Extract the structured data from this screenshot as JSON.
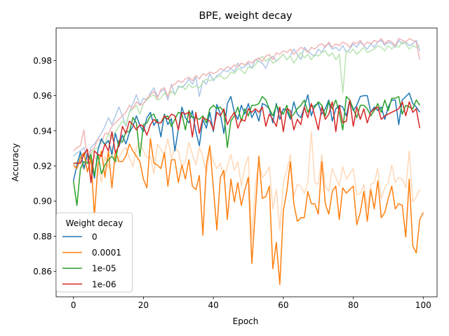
{
  "chart_data": {
    "type": "line",
    "title": "BPE, weight decay",
    "xlabel": "Epoch",
    "ylabel": "Accuracy",
    "xlim": [
      -4.95,
      103.95
    ],
    "ylim": [
      0.8455,
      0.9985
    ],
    "xticks": [
      0,
      20,
      40,
      60,
      80,
      100
    ],
    "yticks": [
      0.86,
      0.88,
      0.9,
      0.92,
      0.94,
      0.96,
      0.98
    ],
    "xtick_labels": [
      "0",
      "20",
      "40",
      "60",
      "80",
      "100"
    ],
    "ytick_labels": [
      "0.86",
      "0.88",
      "0.90",
      "0.92",
      "0.94",
      "0.96",
      "0.98"
    ],
    "legend": {
      "title": "Weight decay",
      "location": "lower left"
    },
    "grid": false,
    "series": [
      {
        "name": "0",
        "color": "#1f77b4",
        "values": [
          0.9115,
          0.9205,
          0.928,
          0.9185,
          0.927,
          0.923,
          0.913,
          0.929,
          0.9355,
          0.932,
          0.9345,
          0.9265,
          0.9385,
          0.931,
          0.9375,
          0.9325,
          0.939,
          0.9425,
          0.9485,
          0.943,
          0.9395,
          0.9475,
          0.9505,
          0.943,
          0.9465,
          0.9365,
          0.9495,
          0.9435,
          0.947,
          0.9285,
          0.941,
          0.9535,
          0.9475,
          0.9445,
          0.9515,
          0.9395,
          0.9315,
          0.9465,
          0.9415,
          0.9505,
          0.9395,
          0.955,
          0.9495,
          0.9385,
          0.9555,
          0.9595,
          0.9505,
          0.9465,
          0.9545,
          0.9495,
          0.9555,
          0.9475,
          0.9515,
          0.9455,
          0.9555,
          0.9545,
          0.9525,
          0.9445,
          0.9555,
          0.9465,
          0.9525,
          0.9515,
          0.9465,
          0.9565,
          0.9495,
          0.9475,
          0.9535,
          0.9605,
          0.9485,
          0.9545,
          0.9555,
          0.9495,
          0.9525,
          0.9575,
          0.9455,
          0.9525,
          0.9545,
          0.9535,
          0.9485,
          0.9575,
          0.9515,
          0.9545,
          0.9595,
          0.96,
          0.96,
          0.9505,
          0.9535,
          0.9515,
          0.9535,
          0.9465,
          0.9535,
          0.9575,
          0.9575,
          0.9435,
          0.9575,
          0.9595,
          0.9615,
          0.9555,
          0.9535,
          0.9505
        ]
      },
      {
        "name": "0.0001",
        "color": "#ff7f0e",
        "values": [
          0.9205,
          0.9185,
          0.9245,
          0.9275,
          0.9165,
          0.9245,
          0.8915,
          0.9205,
          0.9285,
          0.9135,
          0.9285,
          0.9075,
          0.9285,
          0.9225,
          0.9225,
          0.9255,
          0.9325,
          0.9285,
          0.9255,
          0.9225,
          0.9125,
          0.9075,
          0.9355,
          0.9215,
          0.9205,
          0.9185,
          0.9275,
          0.9085,
          0.9235,
          0.9235,
          0.9105,
          0.9205,
          0.9125,
          0.9235,
          0.9085,
          0.9065,
          0.9145,
          0.8805,
          0.9205,
          0.9315,
          0.9075,
          0.8835,
          0.9135,
          0.9175,
          0.8895,
          0.9125,
          0.8995,
          0.9105,
          0.8975,
          0.9065,
          0.9135,
          0.8645,
          0.8945,
          0.9255,
          0.9015,
          0.9025,
          0.9085,
          0.8615,
          0.8765,
          0.8525,
          0.8945,
          0.9055,
          0.9225,
          0.8985,
          0.8885,
          0.8905,
          0.8905,
          0.9055,
          0.8985,
          0.8985,
          0.8925,
          0.9225,
          0.8985,
          0.8925,
          0.9055,
          0.9085,
          0.8895,
          0.9075,
          0.9045,
          0.9065,
          0.9085,
          0.8865,
          0.8935,
          0.9055,
          0.8885,
          0.9065,
          0.8955,
          0.9115,
          0.8905,
          0.8935,
          0.9015,
          0.9085,
          0.8955,
          0.8985,
          0.8975,
          0.8795,
          0.9125,
          0.8745,
          0.8705,
          0.8895,
          0.8935
        ]
      },
      {
        "name": "1e-05",
        "color": "#2ca02c",
        "values": [
          0.9115,
          0.8975,
          0.9185,
          0.9225,
          0.9215,
          0.9265,
          0.9145,
          0.9265,
          0.9155,
          0.9205,
          0.9235,
          0.9255,
          0.9225,
          0.9345,
          0.9335,
          0.9395,
          0.9395,
          0.9475,
          0.9445,
          0.9255,
          0.9435,
          0.9445,
          0.9485,
          0.9495,
          0.9445,
          0.9445,
          0.9475,
          0.9485,
          0.9425,
          0.9465,
          0.9505,
          0.9495,
          0.9405,
          0.9515,
          0.9475,
          0.9475,
          0.9465,
          0.9485,
          0.9445,
          0.9525,
          0.9545,
          0.9525,
          0.9535,
          0.9505,
          0.9305,
          0.9455,
          0.9485,
          0.9535,
          0.9455,
          0.9525,
          0.9485,
          0.9545,
          0.9545,
          0.9555,
          0.9595,
          0.9575,
          0.9525,
          0.9485,
          0.9545,
          0.9515,
          0.9495,
          0.9545,
          0.9475,
          0.9495,
          0.9525,
          0.9545,
          0.9575,
          0.9505,
          0.9545,
          0.9535,
          0.9565,
          0.9545,
          0.9485,
          0.9565,
          0.9525,
          0.9575,
          0.9505,
          0.9405,
          0.9595,
          0.9575,
          0.9525,
          0.9475,
          0.9545,
          0.9545,
          0.9525,
          0.9485,
          0.9515,
          0.9555,
          0.9505,
          0.9575,
          0.9515,
          0.9585,
          0.9585,
          0.9595,
          0.9495,
          0.9545,
          0.9535,
          0.9525,
          0.9575,
          0.9545
        ]
      },
      {
        "name": "1e-06",
        "color": "#d62728",
        "values": [
          0.9215,
          0.9215,
          0.9215,
          0.9265,
          0.9295,
          0.9105,
          0.9285,
          0.9265,
          0.9255,
          0.9325,
          0.9285,
          0.9395,
          0.9275,
          0.9315,
          0.9425,
          0.9385,
          0.9455,
          0.9435,
          0.9405,
          0.9435,
          0.9425,
          0.9375,
          0.9435,
          0.9465,
          0.9445,
          0.9445,
          0.9485,
          0.9465,
          0.9495,
          0.9485,
          0.9405,
          0.9505,
          0.9495,
          0.9505,
          0.9365,
          0.9505,
          0.9385,
          0.9475,
          0.9465,
          0.9455,
          0.9405,
          0.9505,
          0.9485,
          0.9525,
          0.9435,
          0.9475,
          0.9505,
          0.9415,
          0.9465,
          0.9455,
          0.9525,
          0.9505,
          0.9525,
          0.9505,
          0.9535,
          0.9425,
          0.9495,
          0.9465,
          0.9425,
          0.9535,
          0.9395,
          0.9525,
          0.9515,
          0.9405,
          0.9465,
          0.9435,
          0.9535,
          0.9475,
          0.9555,
          0.9485,
          0.9405,
          0.9535,
          0.9465,
          0.9495,
          0.9565,
          0.9395,
          0.9545,
          0.9445,
          0.9455,
          0.9575,
          0.9425,
          0.9535,
          0.9465,
          0.9525,
          0.9445,
          0.9505,
          0.9525,
          0.9535,
          0.9465,
          0.9485,
          0.9495,
          0.9505,
          0.9515,
          0.9525,
          0.9565,
          0.9485,
          0.9565,
          0.9505,
          0.9525,
          0.9415
        ]
      },
      {
        "name": "",
        "color": "#aec7e8",
        "faded": true,
        "values": [
          0.9255,
          0.9275,
          0.9285,
          0.9305,
          0.9225,
          0.9305,
          0.9325,
          0.9355,
          0.9385,
          0.9425,
          0.9475,
          0.9435,
          0.9485,
          0.9535,
          0.9485,
          0.9425,
          0.9505,
          0.9555,
          0.9605,
          0.9545,
          0.9585,
          0.9575,
          0.9615,
          0.9645,
          0.9595,
          0.9625,
          0.9635,
          0.9575,
          0.9665,
          0.9605,
          0.9655,
          0.9645,
          0.9665,
          0.9695,
          0.9665,
          0.9705,
          0.9595,
          0.9685,
          0.9665,
          0.9725,
          0.9685,
          0.9715,
          0.9725,
          0.9745,
          0.9735,
          0.9755,
          0.9735,
          0.9785,
          0.9755,
          0.9765,
          0.9785,
          0.9755,
          0.9805,
          0.9795,
          0.9785,
          0.9755,
          0.9805,
          0.9825,
          0.9795,
          0.9815,
          0.9835,
          0.9805,
          0.9825,
          0.9865,
          0.9835,
          0.9805,
          0.9875,
          0.9855,
          0.9835,
          0.9825,
          0.9865,
          0.9845,
          0.9885,
          0.9895,
          0.9865,
          0.9875,
          0.9855,
          0.9885,
          0.9845,
          0.9865,
          0.9895,
          0.9875,
          0.9905,
          0.9885,
          0.9865,
          0.9895,
          0.9875,
          0.9905,
          0.9915,
          0.9885,
          0.9905,
          0.9895,
          0.9875,
          0.9915,
          0.9895,
          0.9905,
          0.9885,
          0.9895,
          0.9915,
          0.9855
        ]
      },
      {
        "name": "",
        "color": "#ffd8b8",
        "faded": true,
        "values": [
          0.9185,
          0.9205,
          0.9225,
          0.9175,
          0.9245,
          0.9135,
          0.9265,
          0.9195,
          0.9105,
          0.9255,
          0.9185,
          0.9305,
          0.9215,
          0.9245,
          0.9285,
          0.9305,
          0.9245,
          0.9195,
          0.9305,
          0.9335,
          0.9285,
          0.9245,
          0.9255,
          0.9155,
          0.9325,
          0.9295,
          0.9265,
          0.9355,
          0.9245,
          0.9305,
          0.9285,
          0.9195,
          0.9225,
          0.9335,
          0.9265,
          0.9205,
          0.9305,
          0.9255,
          0.9155,
          0.9285,
          0.9225,
          0.9185,
          0.9215,
          0.9125,
          0.9195,
          0.9265,
          0.9175,
          0.9225,
          0.9085,
          0.9195,
          0.9255,
          0.8785,
          0.9085,
          0.9225,
          0.9135,
          0.9155,
          0.9195,
          0.8955,
          0.9065,
          0.8835,
          0.9105,
          0.9175,
          0.9265,
          0.9025,
          0.9095,
          0.9085,
          0.9045,
          0.9105,
          0.9395,
          0.9105,
          0.9095,
          0.9265,
          0.9085,
          0.9055,
          0.9185,
          0.9135,
          0.9085,
          0.9195,
          0.9125,
          0.9155,
          0.9185,
          0.9035,
          0.9045,
          0.9095,
          0.8955,
          0.9095,
          0.9105,
          0.9185,
          0.9015,
          0.9075,
          0.9105,
          0.9205,
          0.9105,
          0.9135,
          0.9125,
          0.9075,
          0.9285,
          0.8995,
          0.9025,
          0.9065
        ]
      },
      {
        "name": "",
        "color": "#b9e3b1",
        "faded": true,
        "values": [
          0.9205,
          0.9225,
          0.9255,
          0.9275,
          0.9245,
          0.9265,
          0.9295,
          0.9305,
          0.9335,
          0.9325,
          0.9385,
          0.9355,
          0.9395,
          0.9425,
          0.9455,
          0.9435,
          0.9505,
          0.9525,
          0.9545,
          0.9495,
          0.9555,
          0.9575,
          0.9595,
          0.9605,
          0.9575,
          0.9585,
          0.9615,
          0.9595,
          0.9625,
          0.9605,
          0.9645,
          0.9655,
          0.9635,
          0.9665,
          0.9645,
          0.9655,
          0.9645,
          0.9675,
          0.9695,
          0.9685,
          0.9695,
          0.9705,
          0.9715,
          0.9695,
          0.9705,
          0.9735,
          0.9725,
          0.9755,
          0.9745,
          0.9725,
          0.9765,
          0.9755,
          0.9775,
          0.9805,
          0.9825,
          0.9795,
          0.9815,
          0.9785,
          0.9795,
          0.9815,
          0.9835,
          0.9805,
          0.9825,
          0.9785,
          0.9815,
          0.9845,
          0.9815,
          0.9835,
          0.9805,
          0.9835,
          0.9825,
          0.9845,
          0.9855,
          0.9825,
          0.9845,
          0.9805,
          0.9835,
          0.9615,
          0.9855,
          0.9845,
          0.9865,
          0.9835,
          0.9855,
          0.9875,
          0.9845,
          0.9855,
          0.9865,
          0.9885,
          0.9875,
          0.9855,
          0.9885,
          0.9865,
          0.9885,
          0.9875,
          0.9905,
          0.9895,
          0.9865,
          0.9885,
          0.9875,
          0.9885
        ]
      },
      {
        "name": "",
        "color": "#f2b5b5",
        "faded": true,
        "values": [
          0.9285,
          0.9305,
          0.9315,
          0.9405,
          0.9225,
          0.9285,
          0.9305,
          0.9355,
          0.9335,
          0.9385,
          0.9385,
          0.9425,
          0.9445,
          0.9465,
          0.9485,
          0.9505,
          0.9545,
          0.9525,
          0.9565,
          0.9545,
          0.9555,
          0.9585,
          0.9605,
          0.9625,
          0.9585,
          0.9635,
          0.9645,
          0.9595,
          0.9655,
          0.9665,
          0.9685,
          0.9675,
          0.9695,
          0.9705,
          0.9685,
          0.9715,
          0.9695,
          0.9725,
          0.9715,
          0.9735,
          0.9725,
          0.9735,
          0.9755,
          0.9745,
          0.9765,
          0.9755,
          0.9775,
          0.9765,
          0.9785,
          0.9775,
          0.9795,
          0.9785,
          0.9805,
          0.9815,
          0.9795,
          0.9825,
          0.9835,
          0.9805,
          0.9845,
          0.9835,
          0.9855,
          0.9845,
          0.9865,
          0.9835,
          0.9855,
          0.9875,
          0.9865,
          0.9845,
          0.9875,
          0.9865,
          0.9885,
          0.9895,
          0.9875,
          0.9905,
          0.9875,
          0.9895,
          0.9885,
          0.9905,
          0.9895,
          0.9875,
          0.9905,
          0.9895,
          0.9915,
          0.9885,
          0.9905,
          0.9895,
          0.9915,
          0.9905,
          0.9925,
          0.9895,
          0.9915,
          0.9905,
          0.9885,
          0.9925,
          0.9915,
          0.9905,
          0.9925,
          0.9915,
          0.9905,
          0.9805
        ]
      }
    ]
  }
}
